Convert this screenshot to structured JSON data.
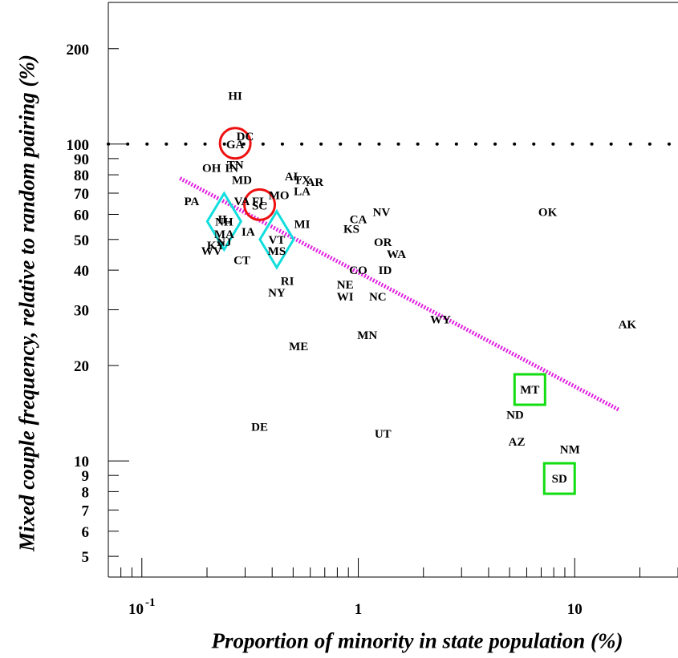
{
  "chart_data": {
    "type": "scatter",
    "title": "",
    "xlabel": "Proportion of minority in state population (%)",
    "ylabel": "Mixed couple frequency, relative to random pairing (%)",
    "x_scale": "log",
    "y_scale": "log",
    "xlim": [
      0.07,
      30
    ],
    "ylim": [
      4.3,
      280
    ],
    "x_tick_labels": [
      {
        "value": 0.1,
        "base": "10",
        "exp": "-1"
      },
      {
        "value": 1,
        "base": "1",
        "exp": ""
      },
      {
        "value": 10,
        "base": "10",
        "exp": ""
      }
    ],
    "y_tick_labels": [
      {
        "value": 5,
        "label": "5"
      },
      {
        "value": 6,
        "label": "6"
      },
      {
        "value": 7,
        "label": "7"
      },
      {
        "value": 8,
        "label": "8"
      },
      {
        "value": 9,
        "label": "9"
      },
      {
        "value": 10,
        "label": "10"
      },
      {
        "value": 20,
        "label": "20"
      },
      {
        "value": 30,
        "label": "30"
      },
      {
        "value": 40,
        "label": "40"
      },
      {
        "value": 50,
        "label": "50"
      },
      {
        "value": 60,
        "label": "60"
      },
      {
        "value": 70,
        "label": "70"
      },
      {
        "value": 80,
        "label": "80"
      },
      {
        "value": 90,
        "label": "90"
      },
      {
        "value": 100,
        "label": "100"
      },
      {
        "value": 200,
        "label": "200"
      }
    ],
    "reference_line": {
      "y": 100,
      "style": "dotted",
      "color": "#000000"
    },
    "fit_line": {
      "x": [
        0.15,
        16
      ],
      "y": [
        78,
        14.5
      ],
      "color": "#e020e0",
      "style": "dotted"
    },
    "points": [
      {
        "label": "HI",
        "x": 0.27,
        "y": 142
      },
      {
        "label": "DC",
        "x": 0.3,
        "y": 106
      },
      {
        "label": "GA",
        "x": 0.27,
        "y": 100,
        "marker": "circle"
      },
      {
        "label": "TN",
        "x": 0.27,
        "y": 86
      },
      {
        "label": "OH",
        "x": 0.21,
        "y": 84
      },
      {
        "label": "IN",
        "x": 0.26,
        "y": 84
      },
      {
        "label": "MD",
        "x": 0.29,
        "y": 77
      },
      {
        "label": "AL",
        "x": 0.5,
        "y": 79
      },
      {
        "label": "TX",
        "x": 0.55,
        "y": 77
      },
      {
        "label": "AR",
        "x": 0.63,
        "y": 76
      },
      {
        "label": "LA",
        "x": 0.55,
        "y": 71
      },
      {
        "label": "MO",
        "x": 0.43,
        "y": 69
      },
      {
        "label": "PA",
        "x": 0.17,
        "y": 66
      },
      {
        "label": "VA",
        "x": 0.29,
        "y": 66
      },
      {
        "label": "FL",
        "x": 0.35,
        "y": 66
      },
      {
        "label": "SC",
        "x": 0.35,
        "y": 64,
        "marker": "circle"
      },
      {
        "label": "NV",
        "x": 1.28,
        "y": 61
      },
      {
        "label": "OK",
        "x": 7.5,
        "y": 61
      },
      {
        "label": "CA",
        "x": 1.0,
        "y": 58
      },
      {
        "label": "MI",
        "x": 0.55,
        "y": 56
      },
      {
        "label": "NH",
        "x": 0.24,
        "y": 57,
        "marker": "diamond"
      },
      {
        "label": "IL",
        "x": 0.24,
        "y": 58
      },
      {
        "label": "KS",
        "x": 0.93,
        "y": 54
      },
      {
        "label": "IA",
        "x": 0.31,
        "y": 53
      },
      {
        "label": "MA",
        "x": 0.24,
        "y": 52
      },
      {
        "label": "VT",
        "x": 0.42,
        "y": 50,
        "marker": "diamond"
      },
      {
        "label": "OR",
        "x": 1.3,
        "y": 49
      },
      {
        "label": "KY",
        "x": 0.22,
        "y": 48
      },
      {
        "label": "NJ",
        "x": 0.24,
        "y": 49
      },
      {
        "label": "WV",
        "x": 0.21,
        "y": 46
      },
      {
        "label": "MS",
        "x": 0.42,
        "y": 46
      },
      {
        "label": "WA",
        "x": 1.5,
        "y": 45
      },
      {
        "label": "CT",
        "x": 0.29,
        "y": 43
      },
      {
        "label": "CO",
        "x": 1.0,
        "y": 40
      },
      {
        "label": "ID",
        "x": 1.33,
        "y": 40
      },
      {
        "label": "RI",
        "x": 0.47,
        "y": 37
      },
      {
        "label": "NE",
        "x": 0.87,
        "y": 36
      },
      {
        "label": "NY",
        "x": 0.42,
        "y": 34
      },
      {
        "label": "WI",
        "x": 0.87,
        "y": 33
      },
      {
        "label": "NC",
        "x": 1.23,
        "y": 33
      },
      {
        "label": "WY",
        "x": 2.4,
        "y": 28
      },
      {
        "label": "AK",
        "x": 17.5,
        "y": 27
      },
      {
        "label": "MN",
        "x": 1.1,
        "y": 25
      },
      {
        "label": "ME",
        "x": 0.53,
        "y": 23
      },
      {
        "label": "MT",
        "x": 6.2,
        "y": 16.8,
        "marker": "square"
      },
      {
        "label": "ND",
        "x": 5.3,
        "y": 14
      },
      {
        "label": "DE",
        "x": 0.35,
        "y": 12.8
      },
      {
        "label": "UT",
        "x": 1.3,
        "y": 12.2
      },
      {
        "label": "AZ",
        "x": 5.4,
        "y": 11.5
      },
      {
        "label": "NM",
        "x": 9.5,
        "y": 10.9
      },
      {
        "label": "SD",
        "x": 8.5,
        "y": 8.8,
        "marker": "square"
      }
    ],
    "marker_colors": {
      "circle": "#ee1111",
      "diamond": "#11dddd",
      "square": "#11dd11"
    },
    "grid": false,
    "legend": "none"
  }
}
